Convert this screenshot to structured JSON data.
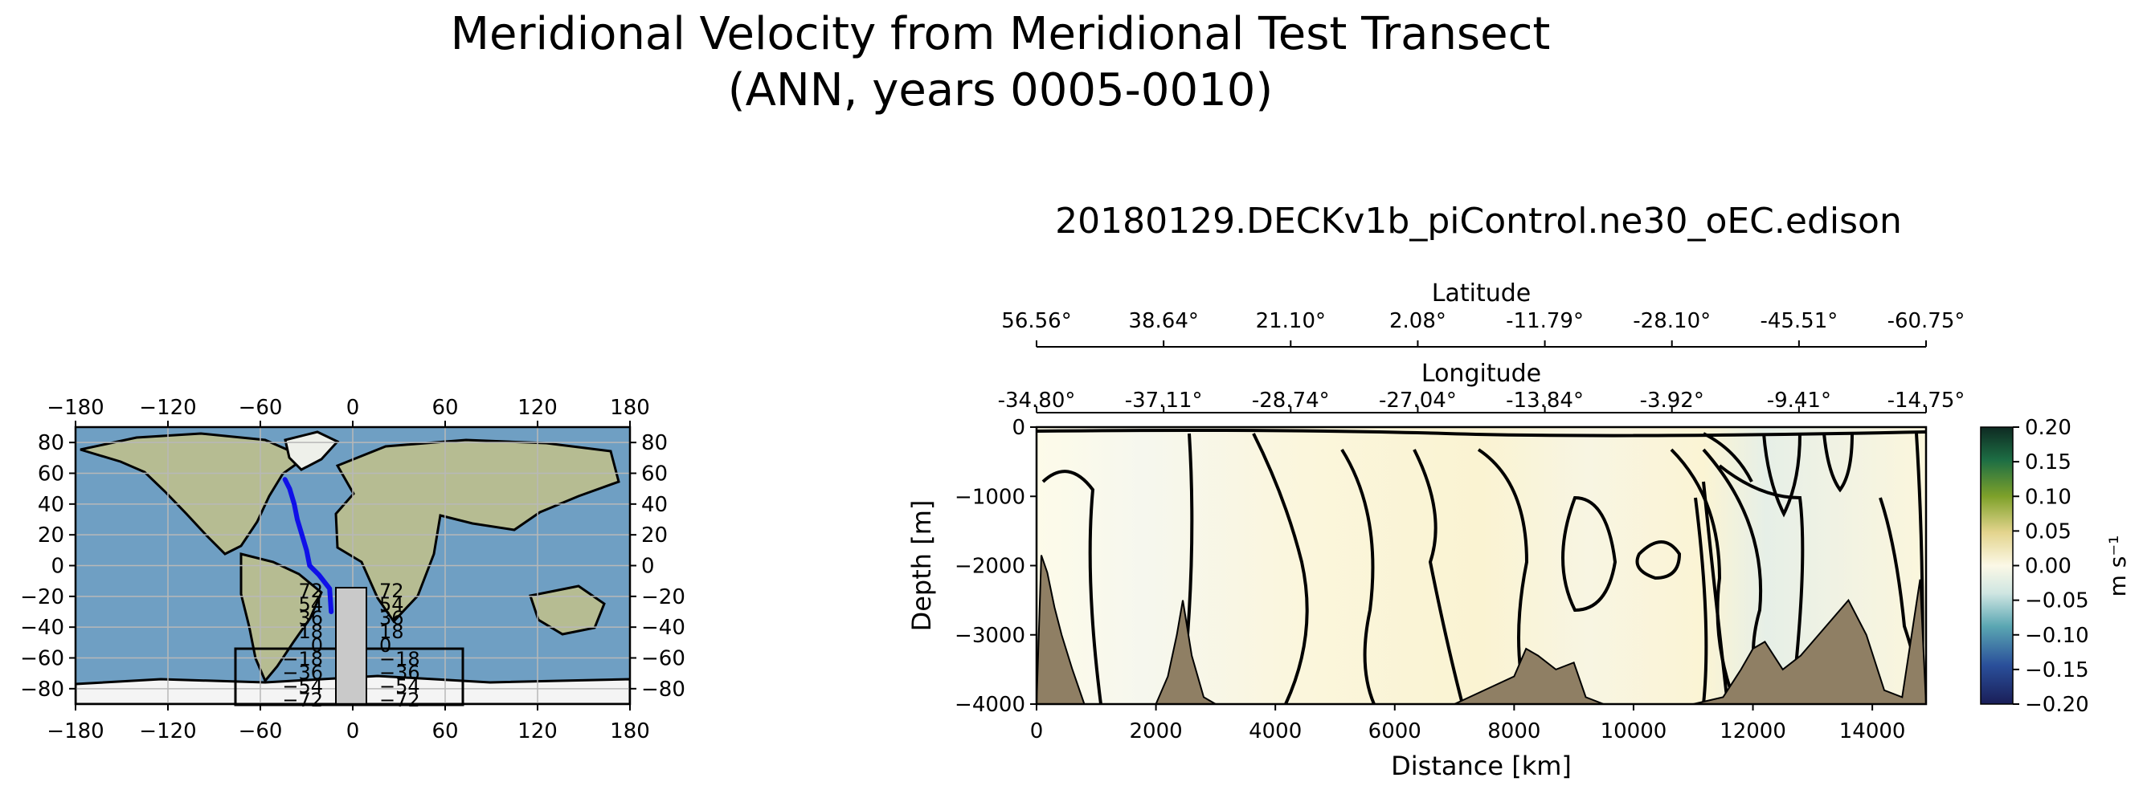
{
  "figure": {
    "title_line1": "Meridional Velocity from Meridional Test Transect",
    "title_line2": "(ANN, years 0005-0010)",
    "subtitle": "20180129.DECKv1b_piControl.ne30_oEC.edison"
  },
  "colors": {
    "land": "#8f7f64",
    "contour": "#000000",
    "transect": "#1010e8",
    "ocean": "#6f9fc3",
    "map_land": "#b6bc92",
    "ice": "#f4f4f4"
  },
  "map_panel": {
    "x_ticks": [
      "−180",
      "−120",
      "−60",
      "0",
      "60",
      "120",
      "180"
    ],
    "y_ticks": [
      "80",
      "60",
      "40",
      "20",
      "0",
      "−20",
      "−40",
      "−60",
      "−80"
    ],
    "inset_y_labels": [
      "72",
      "54",
      "36",
      "18",
      "0",
      "−18",
      "−36",
      "−54",
      "−72"
    ]
  },
  "chart_data": [
    {
      "type": "line",
      "title": "",
      "xlabel": "",
      "ylabel": "",
      "xlim": [
        -180,
        180
      ],
      "ylim": [
        -90,
        90
      ],
      "grid": true,
      "series": [
        {
          "x": [
            -44,
            -41,
            -38,
            -36,
            -33,
            -30,
            -28,
            -22,
            -15,
            -14
          ],
          "y": [
            56,
            50,
            40,
            30,
            20,
            10,
            0,
            -6,
            -15,
            -30
          ]
        }
      ]
    },
    {
      "type": "heatmap",
      "title": "20180129.DECKv1b_piControl.ne30_oEC.edison",
      "xlabel": "Distance [km]",
      "ylabel": "Depth [m]",
      "xlim": [
        0,
        14900
      ],
      "ylim": [
        -4000,
        0
      ],
      "x_ticks": [
        "0",
        "2000",
        "4000",
        "6000",
        "8000",
        "10000",
        "12000",
        "14000"
      ],
      "y_ticks": [
        "0",
        "−1000",
        "−2000",
        "−3000",
        "−4000"
      ],
      "secondary_axes": [
        {
          "label": "Latitude",
          "ticks": [
            "56.56°",
            "38.64°",
            "21.10°",
            "2.08°",
            "-11.79°",
            "-28.10°",
            "-45.51°",
            "-60.75°"
          ]
        },
        {
          "label": "Longitude",
          "ticks": [
            "-34.80°",
            "-37.11°",
            "-28.74°",
            "-27.04°",
            "-13.84°",
            "-3.92°",
            "-9.41°",
            "-14.75°"
          ]
        }
      ],
      "colorbar": {
        "label": "m s⁻¹",
        "range": [
          -0.2,
          0.2
        ],
        "ticks": [
          "0.20",
          "0.15",
          "0.10",
          "0.05",
          "0.00",
          "−0.05",
          "−0.10",
          "−0.15",
          "−0.20"
        ]
      },
      "bathymetry": {
        "x": [
          0,
          80,
          180,
          300,
          420,
          600,
          800,
          1200,
          1500,
          2000,
          2200,
          2350,
          2450,
          2600,
          2800,
          3000,
          5000,
          6000,
          7000,
          7500,
          8000,
          8200,
          8400,
          8700,
          9000,
          9200,
          9500,
          10000,
          11000,
          11500,
          11800,
          12000,
          12200,
          12500,
          12800,
          13000,
          13300,
          13600,
          13900,
          14200,
          14500,
          14800,
          14900
        ],
        "y": [
          -4000,
          -1850,
          -2100,
          -2600,
          -3000,
          -3500,
          -4000,
          -4000,
          -4000,
          -4000,
          -3600,
          -3000,
          -2500,
          -3300,
          -3900,
          -4000,
          -4000,
          -4000,
          -4000,
          -3800,
          -3600,
          -3200,
          -3300,
          -3500,
          -3400,
          -3900,
          -4000,
          -4000,
          -4000,
          -3900,
          -3500,
          -3200,
          -3100,
          -3500,
          -3300,
          -3100,
          -2800,
          -2500,
          -3000,
          -3800,
          -3900,
          -2200,
          -4000
        ]
      }
    }
  ]
}
